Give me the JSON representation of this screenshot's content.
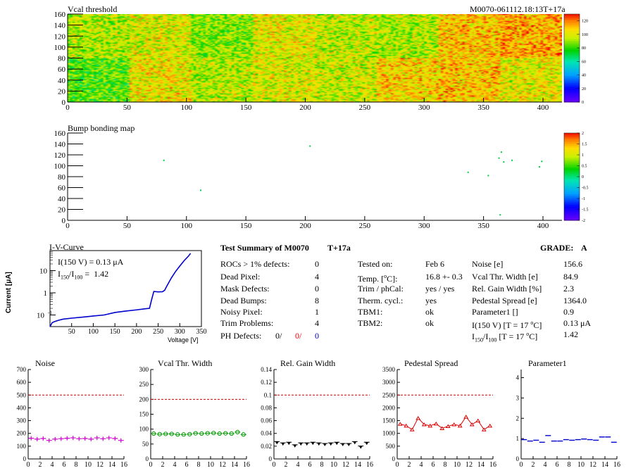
{
  "header": {
    "module_id": "M0070-061112.18:13T+17a"
  },
  "charts": {
    "vcal_title": "Vcal threshold",
    "bump_title": "Bump bonding map",
    "iv_title": "I-V-Curve",
    "iv_ylabel": "Current [μA]",
    "iv_xlabel": "Voltage [V]",
    "iv_annot1": "I(150 V) = 0.13 μA",
    "iv_annot2": "I150/I100 =  1.42",
    "noise_title": "Noise",
    "vcal_width_title": "Vcal Thr. Width",
    "gain_title": "Rel. Gain Width",
    "ped_title": "Pedestal Spread",
    "par1_title": "Parameter1"
  },
  "summary": {
    "title": "Test Summary of M0070",
    "temp_tag": "T+17a",
    "grade_label": "GRADE:",
    "grade": "A",
    "left": [
      {
        "label": "ROCs > 1% defects:",
        "value": "0"
      },
      {
        "label": "Dead Pixel:",
        "value": "4"
      },
      {
        "label": "Mask Defects:",
        "value": "0"
      },
      {
        "label": "Dead Bumps:",
        "value": "8"
      },
      {
        "label": "Noisy Pixel:",
        "value": "1"
      },
      {
        "label": "Trim Problems:",
        "value": "4"
      }
    ],
    "ph_label": "PH Defects:",
    "ph_values": [
      "0/",
      "0/",
      "0"
    ],
    "ph_colors": [
      "#000000",
      "#ff0000",
      "#0000cc"
    ],
    "middle": [
      {
        "label": "Tested on:",
        "value": "Feb 6"
      },
      {
        "label": "Temp. [°C]:",
        "value": "16.8 +- 0.3"
      },
      {
        "label": "Trim / phCal:",
        "value": "yes / yes"
      },
      {
        "label": "Therm. cycl.:",
        "value": "yes"
      },
      {
        "label": "TBM1:",
        "value": "ok"
      },
      {
        "label": "TBM2:",
        "value": "ok"
      }
    ],
    "right": [
      {
        "label": "Noise [e]",
        "value": "156.6"
      },
      {
        "label": "Vcal Thr. Width [e]",
        "value": "84.9"
      },
      {
        "label": "Rel. Gain Width [%]",
        "value": "2.3"
      },
      {
        "label": "Pedestal Spread [e]",
        "value": "1364.0"
      },
      {
        "label": "Parameter1 []",
        "value": "0.9"
      },
      {
        "label": "I(150 V) [T = 17 °C]",
        "value": "0.13 μA"
      },
      {
        "label": "I150/I100 [T = 17 °C]",
        "value": "1.42"
      }
    ]
  },
  "chart_data": [
    {
      "type": "heatmap",
      "name": "vcal_threshold",
      "title": "Vcal threshold",
      "xlim": [
        0,
        416
      ],
      "ylim": [
        0,
        160
      ],
      "xticks": [
        0,
        50,
        100,
        150,
        200,
        250,
        300,
        350,
        400
      ],
      "yticks": [
        0,
        20,
        40,
        60,
        80,
        100,
        120,
        140,
        160
      ],
      "zlim": [
        0,
        130
      ],
      "zticks": [
        0,
        20,
        40,
        60,
        80,
        100,
        120
      ],
      "roc_mean_bottom_row": [
        82,
        102,
        94,
        98,
        96,
        106,
        108,
        100
      ],
      "roc_mean_top_row": [
        92,
        98,
        88,
        100,
        94,
        92,
        108,
        112
      ]
    },
    {
      "type": "scatter",
      "name": "bump_bonding_map",
      "title": "Bump bonding map",
      "xlim": [
        0,
        416
      ],
      "ylim": [
        0,
        160
      ],
      "xticks": [
        0,
        50,
        100,
        150,
        200,
        250,
        300,
        350,
        400
      ],
      "yticks": [
        0,
        20,
        40,
        60,
        80,
        100,
        120,
        140,
        160
      ],
      "zlim": [
        -2,
        2
      ],
      "zticks": [
        -2,
        -1.5,
        -1,
        -0.5,
        0,
        0.5,
        1,
        1.5,
        2
      ],
      "points": [
        [
          81,
          110
        ],
        [
          112,
          55
        ],
        [
          204,
          136
        ],
        [
          337,
          88
        ],
        [
          354,
          82
        ],
        [
          363,
          114
        ],
        [
          365,
          125
        ],
        [
          367,
          107
        ],
        [
          374,
          110
        ],
        [
          397,
          98
        ],
        [
          399,
          108
        ],
        [
          364,
          10
        ]
      ]
    },
    {
      "type": "line",
      "name": "iv_curve",
      "title": "I-V-Curve",
      "xlabel": "Voltage [V]",
      "ylabel": "Current [μA]",
      "xlim": [
        0,
        350
      ],
      "ylim": [
        0.03,
        80
      ],
      "yscale": "log",
      "xticks": [
        50,
        100,
        150,
        200,
        250,
        300,
        350
      ],
      "yticks": [
        0.1,
        1,
        10
      ],
      "x": [
        0,
        5,
        10,
        20,
        30,
        50,
        75,
        100,
        125,
        150,
        175,
        200,
        220,
        230,
        235,
        240,
        250,
        260,
        265,
        270,
        280,
        290,
        300,
        310,
        320,
        325
      ],
      "y": [
        0.03,
        0.045,
        0.05,
        0.058,
        0.065,
        0.072,
        0.08,
        0.09,
        0.1,
        0.13,
        0.15,
        0.17,
        0.19,
        0.2,
        0.5,
        1.15,
        1.1,
        1.12,
        1.3,
        2.0,
        4.5,
        9,
        16,
        28,
        45,
        60
      ]
    },
    {
      "type": "scatter",
      "name": "noise",
      "title": "Noise",
      "xlim": [
        0,
        16
      ],
      "ylim": [
        0,
        700
      ],
      "xticks": [
        0,
        2,
        4,
        6,
        8,
        10,
        12,
        14,
        16
      ],
      "yticks": [
        0,
        100,
        200,
        300,
        400,
        500,
        600,
        700
      ],
      "cut": 500,
      "color": "#cc00cc",
      "x": [
        0.5,
        1.5,
        2.5,
        3.5,
        4.5,
        5.5,
        6.5,
        7.5,
        8.5,
        9.5,
        10.5,
        11.5,
        12.5,
        13.5,
        14.5,
        15.5
      ],
      "y": [
        162,
        155,
        160,
        145,
        155,
        158,
        162,
        165,
        158,
        160,
        155,
        165,
        158,
        165,
        160,
        145
      ]
    },
    {
      "type": "scatter",
      "name": "vcal_thr_width",
      "title": "Vcal Thr. Width",
      "xlim": [
        0,
        16
      ],
      "ylim": [
        0,
        300
      ],
      "xticks": [
        0,
        2,
        4,
        6,
        8,
        10,
        12,
        14,
        16
      ],
      "yticks": [
        0,
        50,
        100,
        150,
        200,
        250,
        300
      ],
      "cut": 200,
      "color": "#009900",
      "x": [
        0.5,
        1.5,
        2.5,
        3.5,
        4.5,
        5.5,
        6.5,
        7.5,
        8.5,
        9.5,
        10.5,
        11.5,
        12.5,
        13.5,
        14.5,
        15.5
      ],
      "y": [
        85,
        83,
        84,
        84,
        82,
        82,
        83,
        86,
        85,
        86,
        87,
        85,
        86,
        85,
        90,
        82
      ]
    },
    {
      "type": "scatter",
      "name": "rel_gain_width",
      "title": "Rel. Gain Width",
      "xlim": [
        0,
        16
      ],
      "ylim": [
        0,
        0.14
      ],
      "xticks": [
        0,
        2,
        4,
        6,
        8,
        10,
        12,
        14,
        16
      ],
      "yticks": [
        0,
        0.02,
        0.04,
        0.06,
        0.08,
        0.1,
        0.12,
        0.14
      ],
      "cut": 0.1,
      "color": "#000000",
      "x": [
        0.5,
        1.5,
        2.5,
        3.5,
        4.5,
        5.5,
        6.5,
        7.5,
        8.5,
        9.5,
        10.5,
        11.5,
        12.5,
        13.5,
        14.5,
        15.5
      ],
      "y": [
        0.025,
        0.023,
        0.024,
        0.02,
        0.023,
        0.023,
        0.024,
        0.023,
        0.022,
        0.023,
        0.024,
        0.022,
        0.022,
        0.025,
        0.018,
        0.024
      ]
    },
    {
      "type": "line",
      "name": "pedestal_spread",
      "title": "Pedestal Spread",
      "xlim": [
        0,
        16
      ],
      "ylim": [
        0,
        3500
      ],
      "xticks": [
        0,
        2,
        4,
        6,
        8,
        10,
        12,
        14,
        16
      ],
      "yticks": [
        0,
        500,
        1000,
        1500,
        2000,
        2500,
        3000,
        3500
      ],
      "cut": 2500,
      "color": "#dd0000",
      "x": [
        0.5,
        1.5,
        2.5,
        3.5,
        4.5,
        5.5,
        6.5,
        7.5,
        8.5,
        9.5,
        10.5,
        11.5,
        12.5,
        13.5,
        14.5,
        15.5
      ],
      "y": [
        1370,
        1300,
        1150,
        1600,
        1350,
        1300,
        1380,
        1200,
        1280,
        1350,
        1300,
        1650,
        1350,
        1500,
        1150,
        1300
      ]
    },
    {
      "type": "scatter",
      "name": "parameter1",
      "title": "Parameter1",
      "xlim": [
        0,
        16
      ],
      "ylim": [
        0,
        4.4
      ],
      "xticks": [
        0,
        2,
        4,
        6,
        8,
        10,
        12,
        14,
        16
      ],
      "yticks": [
        0,
        1,
        2,
        3,
        4
      ],
      "color": "#0000cc",
      "x": [
        0.5,
        1.5,
        2.5,
        3.5,
        4.5,
        5.5,
        6.5,
        7.5,
        8.5,
        9.5,
        10.5,
        11.5,
        12.5,
        13.5,
        14.5,
        15.5
      ],
      "y": [
        0.95,
        0.88,
        0.92,
        0.82,
        1.15,
        0.88,
        0.88,
        0.95,
        0.92,
        0.95,
        0.98,
        0.95,
        0.92,
        1.08,
        1.08,
        0.82
      ]
    }
  ]
}
